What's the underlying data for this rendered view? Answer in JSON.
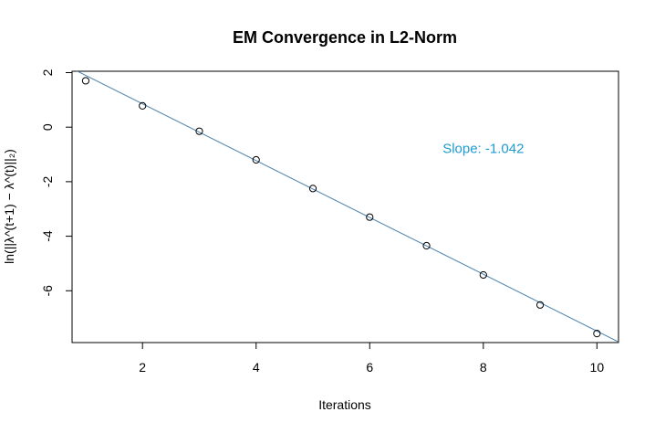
{
  "chart_data": {
    "type": "scatter",
    "title": "EM Convergence in L2-Norm",
    "xlabel": "Iterations",
    "ylabel": "ln(||λ^(t+1) − λ^(t)||₂)",
    "x": [
      1,
      2,
      3,
      4,
      5,
      6,
      7,
      8,
      9,
      10
    ],
    "y": [
      1.7,
      0.78,
      -0.15,
      -1.2,
      -2.25,
      -3.3,
      -4.35,
      -5.42,
      -6.52,
      -7.57
    ],
    "x_ticks": [
      "2",
      "4",
      "6",
      "8",
      "10"
    ],
    "y_ticks": [
      "2",
      "0",
      "-2",
      "-4",
      "-6"
    ],
    "xlim": [
      0.76,
      10.38
    ],
    "ylim": [
      -7.9,
      2.05
    ],
    "fit_line": {
      "slope": -1.042,
      "intercept": 2.94,
      "color": "#4682b4"
    },
    "annotation": {
      "text": "Slope: -1.042",
      "x": 8.0,
      "y": -0.95,
      "color": "#1f9bd1"
    },
    "grid": false,
    "legend": false
  }
}
